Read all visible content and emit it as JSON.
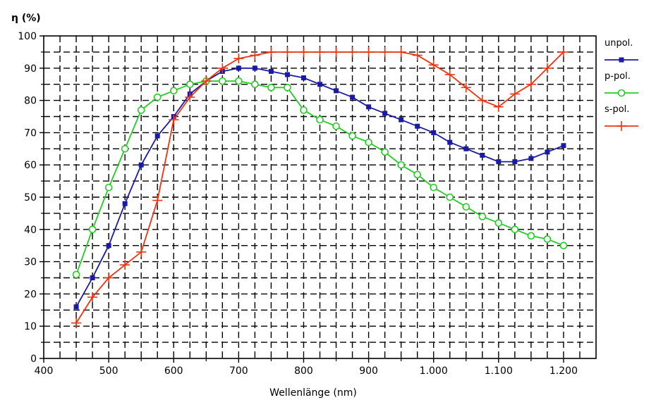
{
  "chart_data": {
    "type": "line",
    "ylabel": "η (%)",
    "xlabel": "Wellenlänge (nm)",
    "xlim": [
      400,
      1250
    ],
    "ylim": [
      0,
      100
    ],
    "x_ticks": [
      400,
      500,
      600,
      700,
      800,
      900,
      1000,
      1100,
      1200
    ],
    "x_tick_labels": [
      "400",
      "500",
      "600",
      "700",
      "800",
      "900",
      "1.000",
      "1.100",
      "1.200"
    ],
    "y_ticks": [
      0,
      10,
      20,
      30,
      40,
      50,
      60,
      70,
      80,
      90,
      100
    ],
    "y_tick_labels": [
      "0",
      "10",
      "20",
      "30",
      "40",
      "50",
      "60",
      "70",
      "80",
      "90",
      "100"
    ],
    "grid": true,
    "grid_style": "dashed",
    "legend_position": "right",
    "series": [
      {
        "name": "unpol.",
        "color": "#1a1aa6",
        "marker": "square",
        "x": [
          450,
          475,
          500,
          525,
          550,
          575,
          600,
          625,
          650,
          675,
          700,
          725,
          750,
          775,
          800,
          825,
          850,
          875,
          900,
          925,
          950,
          975,
          1000,
          1025,
          1050,
          1075,
          1100,
          1125,
          1150,
          1175,
          1200
        ],
        "y": [
          16,
          25,
          35,
          48,
          60,
          69,
          75,
          82,
          86,
          89,
          90,
          90,
          89,
          88,
          87,
          85,
          83,
          81,
          78,
          76,
          74,
          72,
          70,
          67,
          65,
          63,
          61,
          61,
          62,
          64,
          66
        ]
      },
      {
        "name": "p-pol.",
        "color": "#22cc22",
        "marker": "circle",
        "x": [
          450,
          475,
          500,
          525,
          550,
          575,
          600,
          625,
          650,
          675,
          700,
          725,
          750,
          775,
          800,
          825,
          850,
          875,
          900,
          925,
          950,
          975,
          1000,
          1025,
          1050,
          1075,
          1100,
          1125,
          1150,
          1175,
          1200
        ],
        "y": [
          26,
          40,
          53,
          65,
          77,
          81,
          83,
          85,
          86,
          86,
          86,
          85,
          84,
          84,
          77,
          74,
          72,
          69,
          67,
          64,
          60,
          57,
          53,
          50,
          47,
          44,
          42,
          40,
          38,
          37,
          35
        ]
      },
      {
        "name": "s-pol.",
        "color": "#ee3311",
        "marker": "plus",
        "x": [
          450,
          475,
          500,
          525,
          550,
          575,
          600,
          625,
          650,
          675,
          700,
          725,
          750,
          775,
          800,
          825,
          850,
          875,
          900,
          925,
          950,
          975,
          1000,
          1025,
          1050,
          1075,
          1100,
          1125,
          1150,
          1175,
          1200
        ],
        "y": [
          11,
          19,
          25,
          29,
          33,
          49,
          74,
          81,
          86,
          90,
          93,
          94,
          95,
          95,
          95,
          95,
          95,
          95,
          95,
          95,
          95,
          94,
          91,
          88,
          84,
          80,
          78,
          82,
          85,
          90,
          95
        ]
      }
    ]
  }
}
